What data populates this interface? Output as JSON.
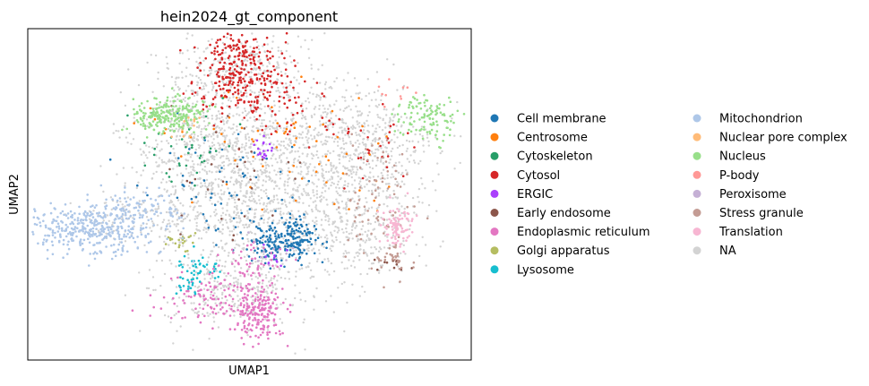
{
  "chart_data": {
    "type": "scatter",
    "title": "hein2024_gt_component",
    "xlabel": "UMAP1",
    "ylabel": "UMAP2",
    "grid": false,
    "ticks": "none",
    "legend_position": "right",
    "legend_columns": 2,
    "series": [
      {
        "name": "Cell membrane",
        "color": "#1f77b4",
        "clusters": [
          {
            "x": 7.5,
            "y": -1.8,
            "sx": 0.55,
            "sy": 0.45,
            "n": 220
          },
          {
            "x": 6.0,
            "y": 0.8,
            "sx": 1.4,
            "sy": 1.3,
            "n": 60
          }
        ]
      },
      {
        "name": "Centrosome",
        "color": "#ff7f0e",
        "clusters": [
          {
            "x": 7.5,
            "y": 2.5,
            "sx": 2.2,
            "sy": 1.2,
            "n": 70
          }
        ]
      },
      {
        "name": "Cytoskeleton",
        "color": "#279e68",
        "clusters": [
          {
            "x": 4.6,
            "y": 2.5,
            "sx": 0.8,
            "sy": 1.0,
            "n": 35
          }
        ]
      },
      {
        "name": "Cytosol",
        "color": "#d62728",
        "clusters": [
          {
            "x": 6.1,
            "y": 6.0,
            "sx": 0.65,
            "sy": 0.95,
            "n": 300
          },
          {
            "x": 7.6,
            "y": 4.5,
            "sx": 1.0,
            "sy": 0.8,
            "n": 60
          },
          {
            "x": 10.3,
            "y": 2.3,
            "sx": 0.6,
            "sy": 0.7,
            "n": 25
          }
        ]
      },
      {
        "name": "ERGIC",
        "color": "#aa40fc",
        "clusters": [
          {
            "x": 6.9,
            "y": 2.3,
            "sx": 0.2,
            "sy": 0.25,
            "n": 20
          },
          {
            "x": 7.1,
            "y": -2.5,
            "sx": 0.2,
            "sy": 0.25,
            "n": 10
          }
        ]
      },
      {
        "name": "Early endosome",
        "color": "#8c564b",
        "clusters": [
          {
            "x": 5.5,
            "y": 1.0,
            "sx": 1.2,
            "sy": 1.2,
            "n": 30
          },
          {
            "x": 10.8,
            "y": -2.8,
            "sx": 0.4,
            "sy": 0.3,
            "n": 12
          }
        ]
      },
      {
        "name": "Endoplasmic reticulum",
        "color": "#e377c2",
        "clusters": [
          {
            "x": 6.7,
            "y": -5.0,
            "sx": 0.38,
            "sy": 0.75,
            "n": 180
          },
          {
            "x": 5.3,
            "y": -4.5,
            "sx": 0.9,
            "sy": 0.55,
            "n": 120
          },
          {
            "x": 6.3,
            "y": -2.7,
            "sx": 0.5,
            "sy": 0.4,
            "n": 35
          }
        ]
      },
      {
        "name": "Golgi apparatus",
        "color": "#b5bd61",
        "clusters": [
          {
            "x": 4.2,
            "y": -1.8,
            "sx": 0.25,
            "sy": 0.25,
            "n": 22
          }
        ]
      },
      {
        "name": "Lysosome",
        "color": "#17becf",
        "clusters": [
          {
            "x": 4.9,
            "y": -3.0,
            "sx": 0.35,
            "sy": 0.3,
            "n": 40
          },
          {
            "x": 4.4,
            "y": -3.9,
            "sx": 0.2,
            "sy": 0.25,
            "n": 15
          }
        ]
      },
      {
        "name": "Mitochondrion",
        "color": "#aec7e8",
        "clusters": [
          {
            "x": 1.5,
            "y": -1.3,
            "sx": 1.0,
            "sy": 0.55,
            "n": 380
          },
          {
            "x": 3.1,
            "y": -0.3,
            "sx": 0.7,
            "sy": 0.4,
            "n": 80
          }
        ]
      },
      {
        "name": "Nuclear pore complex",
        "color": "#ffbb78",
        "clusters": [
          {
            "x": 4.5,
            "y": 3.5,
            "sx": 0.2,
            "sy": 0.25,
            "n": 12
          }
        ]
      },
      {
        "name": "Nucleus",
        "color": "#98df8a",
        "clusters": [
          {
            "x": 3.9,
            "y": 3.9,
            "sx": 0.55,
            "sy": 0.4,
            "n": 230
          },
          {
            "x": 11.9,
            "y": 3.7,
            "sx": 0.5,
            "sy": 0.55,
            "n": 110
          }
        ]
      },
      {
        "name": "P-body",
        "color": "#ff9896",
        "clusters": [
          {
            "x": 10.7,
            "y": 5.0,
            "sx": 0.3,
            "sy": 0.25,
            "n": 10
          }
        ]
      },
      {
        "name": "Peroxisome",
        "color": "#c5b0d5",
        "clusters": [
          {
            "x": 7.0,
            "y": -2.2,
            "sx": 0.4,
            "sy": 0.4,
            "n": 10
          }
        ]
      },
      {
        "name": "Stress granule",
        "color": "#c49c94",
        "clusters": [
          {
            "x": 10.4,
            "y": 0.3,
            "sx": 0.55,
            "sy": 1.6,
            "n": 80
          },
          {
            "x": 10.9,
            "y": -2.6,
            "sx": 0.35,
            "sy": 0.25,
            "n": 25
          }
        ]
      },
      {
        "name": "Translation",
        "color": "#f7b6d2",
        "clusters": [
          {
            "x": 11.0,
            "y": -1.2,
            "sx": 0.25,
            "sy": 0.5,
            "n": 90
          }
        ]
      },
      {
        "name": "NA",
        "color": "#d3d3d3",
        "clusters": [
          {
            "x": 6.5,
            "y": 0.5,
            "sx": 1.6,
            "sy": 2.8,
            "n": 1400
          },
          {
            "x": 9.5,
            "y": 2.3,
            "sx": 1.4,
            "sy": 1.5,
            "n": 650
          },
          {
            "x": 4.8,
            "y": 3.0,
            "sx": 1.0,
            "sy": 1.4,
            "n": 350
          },
          {
            "x": 6.2,
            "y": 6.2,
            "sx": 0.9,
            "sy": 0.7,
            "n": 220
          },
          {
            "x": 9.8,
            "y": -1.3,
            "sx": 1.0,
            "sy": 1.1,
            "n": 260
          },
          {
            "x": 5.7,
            "y": -4.2,
            "sx": 0.9,
            "sy": 0.7,
            "n": 160
          },
          {
            "x": 2.8,
            "y": -0.8,
            "sx": 1.0,
            "sy": 0.5,
            "n": 100
          }
        ]
      }
    ],
    "xlim": [
      -0.5,
      13.3
    ],
    "ylim": [
      -7.2,
      7.8
    ]
  }
}
